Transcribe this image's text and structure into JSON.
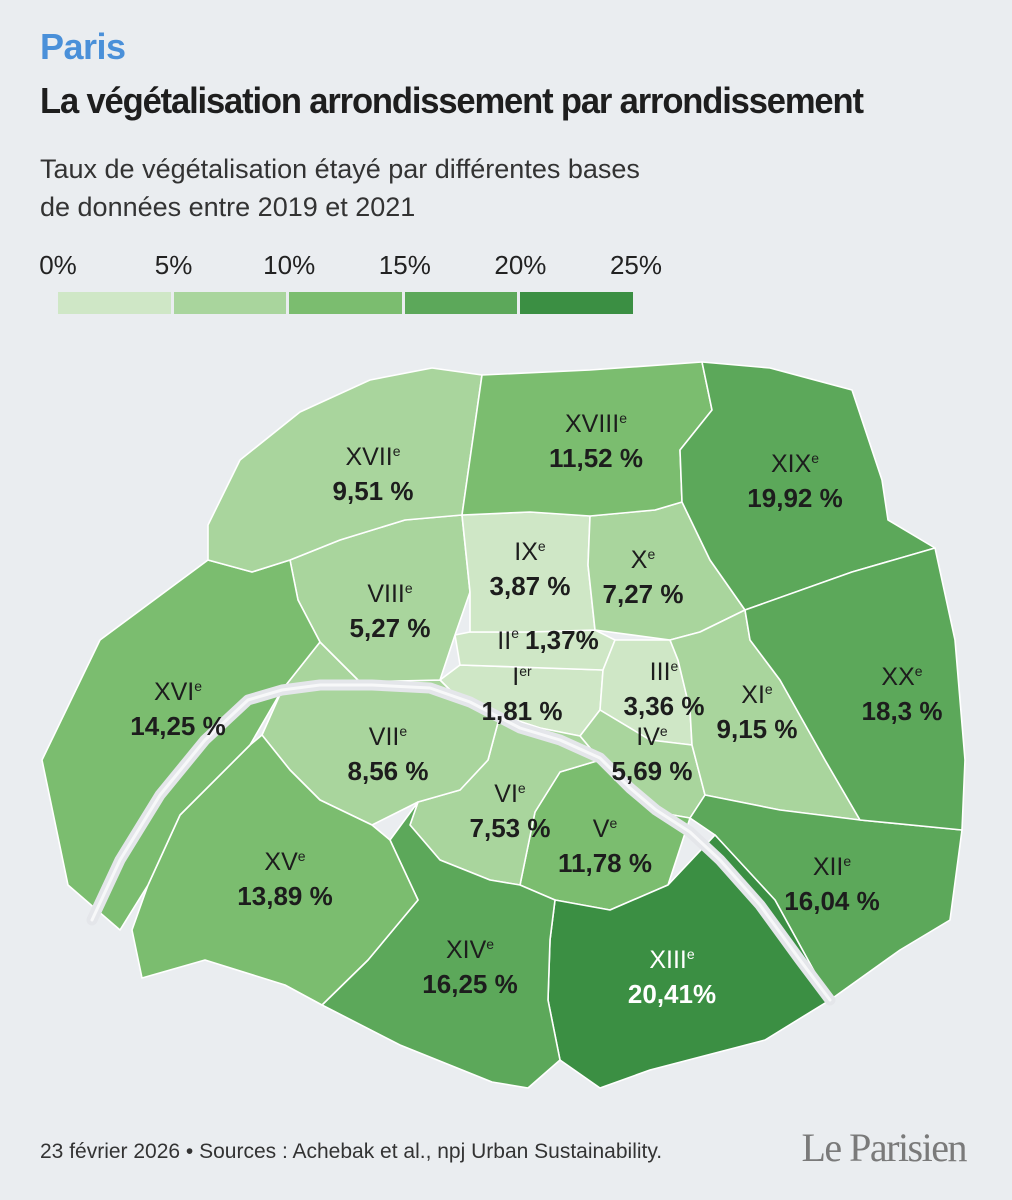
{
  "header": {
    "kicker": "Paris",
    "title": "La végétalisation arrondissement par arrondissement",
    "subtitle_line1": "Taux de végétalisation étayé par différentes bases",
    "subtitle_line2": "de données entre 2019 et 2021"
  },
  "legend": {
    "ticks": [
      "0%",
      "5%",
      "10%",
      "15%",
      "20%",
      "25%"
    ],
    "bins": [
      {
        "min": 0,
        "max": 5,
        "color": "#cfe7c6"
      },
      {
        "min": 5,
        "max": 10,
        "color": "#a9d59d"
      },
      {
        "min": 10,
        "max": 15,
        "color": "#7bbd6f"
      },
      {
        "min": 15,
        "max": 20,
        "color": "#5ca85a"
      },
      {
        "min": 20,
        "max": 25,
        "color": "#3b8f43"
      }
    ]
  },
  "colors": {
    "accent": "#4a90d9",
    "background": "#eaedf0",
    "river": "#e4e6ea",
    "border": "#ffffff"
  },
  "arrondissements": [
    {
      "id": "I",
      "numeral": "I",
      "suffix": "er",
      "value_label": "1,81 %",
      "value": 1.81
    },
    {
      "id": "II",
      "numeral": "II",
      "suffix": "e",
      "value_label": "1,37%",
      "value": 1.37
    },
    {
      "id": "III",
      "numeral": "III",
      "suffix": "e",
      "value_label": "3,36 %",
      "value": 3.36
    },
    {
      "id": "IV",
      "numeral": "IV",
      "suffix": "e",
      "value_label": "5,69 %",
      "value": 5.69
    },
    {
      "id": "V",
      "numeral": "V",
      "suffix": "e",
      "value_label": "11,78 %",
      "value": 11.78
    },
    {
      "id": "VI",
      "numeral": "VI",
      "suffix": "e",
      "value_label": "7,53 %",
      "value": 7.53
    },
    {
      "id": "VII",
      "numeral": "VII",
      "suffix": "e",
      "value_label": "8,56 %",
      "value": 8.56
    },
    {
      "id": "VIII",
      "numeral": "VIII",
      "suffix": "e",
      "value_label": "5,27 %",
      "value": 5.27
    },
    {
      "id": "IX",
      "numeral": "IX",
      "suffix": "e",
      "value_label": "3,87 %",
      "value": 3.87
    },
    {
      "id": "X",
      "numeral": "X",
      "suffix": "e",
      "value_label": "7,27 %",
      "value": 7.27
    },
    {
      "id": "XI",
      "numeral": "XI",
      "suffix": "e",
      "value_label": "9,15 %",
      "value": 9.15
    },
    {
      "id": "XII",
      "numeral": "XII",
      "suffix": "e",
      "value_label": "16,04 %",
      "value": 16.04
    },
    {
      "id": "XIII",
      "numeral": "XIII",
      "suffix": "e",
      "value_label": "20,41%",
      "value": 20.41
    },
    {
      "id": "XIV",
      "numeral": "XIV",
      "suffix": "e",
      "value_label": "16,25 %",
      "value": 16.25
    },
    {
      "id": "XV",
      "numeral": "XV",
      "suffix": "e",
      "value_label": "13,89 %",
      "value": 13.89
    },
    {
      "id": "XVI",
      "numeral": "XVI",
      "suffix": "e",
      "value_label": "14,25 %",
      "value": 14.25
    },
    {
      "id": "XVII",
      "numeral": "XVII",
      "suffix": "e",
      "value_label": "9,51 %",
      "value": 9.51
    },
    {
      "id": "XVIII",
      "numeral": "XVIII",
      "suffix": "e",
      "value_label": "11,52 %",
      "value": 11.52
    },
    {
      "id": "XIX",
      "numeral": "XIX",
      "suffix": "e",
      "value_label": "19,92 %",
      "value": 19.92
    },
    {
      "id": "XX",
      "numeral": "XX",
      "suffix": "e",
      "value_label": "18,3 %",
      "value": 18.3
    }
  ],
  "footer": {
    "source": "23 février 2026 • Sources : Achebak et al., npj Urban Sustainability.",
    "logo_text": "Le Parisien"
  }
}
